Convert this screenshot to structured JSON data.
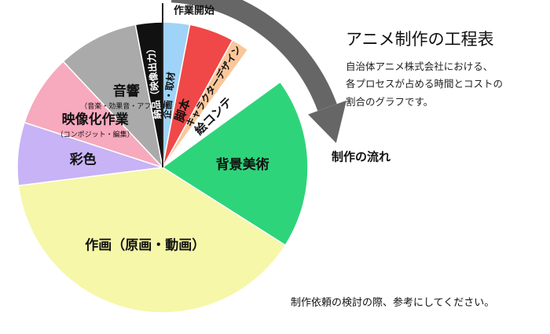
{
  "page": {
    "title": "アニメ制作の工程表",
    "description": [
      "自治体アニメ株式会社における、",
      "各プロセスが占める時間とコストの",
      "割合のグラフです。"
    ],
    "footer_note": "制作依頼の検討の際、参考にしてください。"
  },
  "chart_data": {
    "type": "pie",
    "start_label": "作業開始",
    "flow_label": "制作の流れ",
    "direction": "clockwise",
    "slices": [
      {
        "label": "企画・取材",
        "sublabel": "",
        "percent": 3,
        "color": "#9fd3f7"
      },
      {
        "label": "脚本",
        "sublabel": "",
        "percent": 5,
        "color": "#f04848"
      },
      {
        "label": "キャラクターデザイン",
        "sublabel": "",
        "percent": 2,
        "color": "#f9c79a"
      },
      {
        "label": "絵コンテ",
        "sublabel": "",
        "percent": 5,
        "color": "#ffffff"
      },
      {
        "label": "背景美術",
        "sublabel": "",
        "percent": 19,
        "color": "#2ed47a"
      },
      {
        "label": "作画（原画・動画）",
        "sublabel": "",
        "percent": 39,
        "color": "#f6f7a8"
      },
      {
        "label": "彩色",
        "sublabel": "",
        "percent": 7,
        "color": "#c7b3f5"
      },
      {
        "label": "映像化作業",
        "sublabel": "（コンポジット・編集）",
        "percent": 8,
        "color": "#f7a9bd"
      },
      {
        "label": "音響",
        "sublabel": "（音楽・効果音・アフレコ）",
        "percent": 9,
        "color": "#a9aaa9"
      },
      {
        "label": "納品",
        "sublabel": "（映像出力）",
        "percent": 3,
        "color": "#111111"
      }
    ]
  }
}
